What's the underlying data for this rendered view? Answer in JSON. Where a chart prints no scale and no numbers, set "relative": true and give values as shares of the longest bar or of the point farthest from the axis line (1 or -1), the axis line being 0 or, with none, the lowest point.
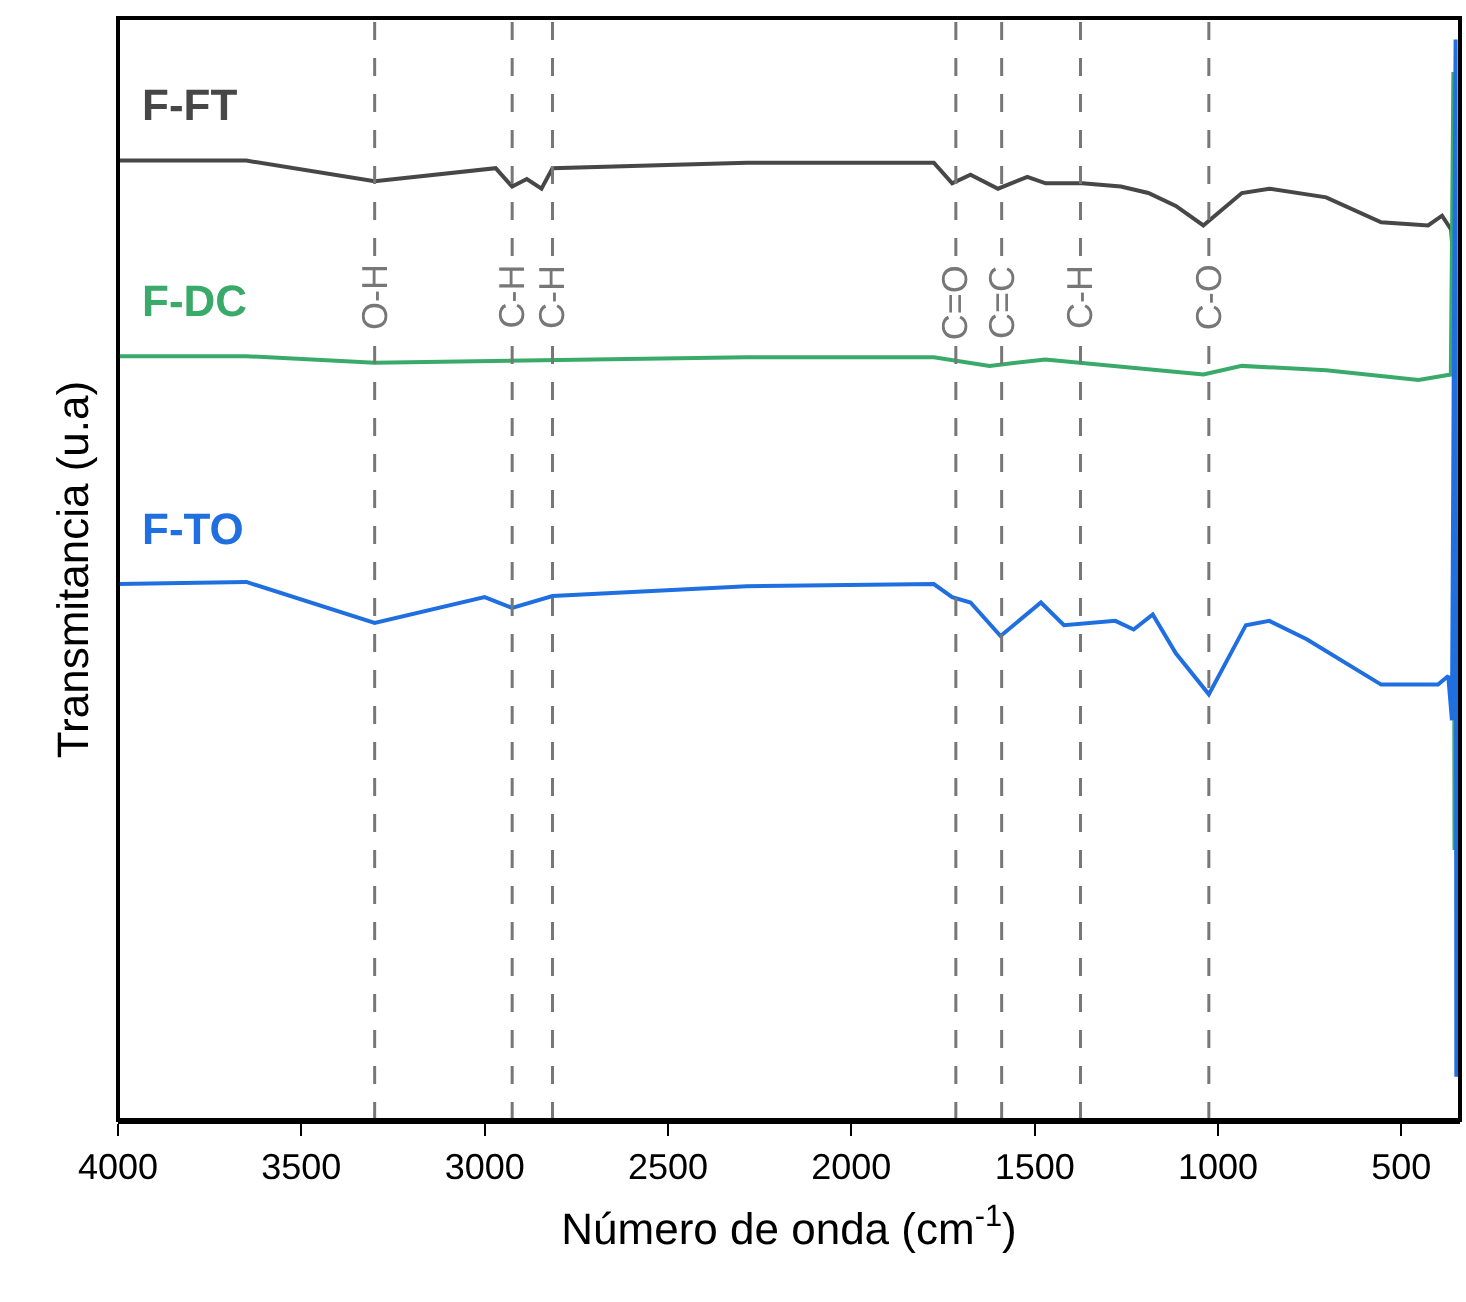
{
  "chart_data": {
    "type": "line",
    "relative": true,
    "xlabel": "Número de onda (cm$^{-1}$)",
    "ylabel": "Transmitancia (u.a)",
    "xlim": [
      4000,
      340
    ],
    "xticks": [
      4000,
      3500,
      3000,
      2500,
      2000,
      1500,
      1000,
      500
    ],
    "grid": false,
    "legend": false,
    "marker": "none",
    "line_style": "solid",
    "series": [
      {
        "name": "F-FT",
        "color": "#474747",
        "x": [
          4000,
          3650,
          3300,
          2970,
          2925,
          2885,
          2845,
          2815,
          2285,
          1775,
          1725,
          1675,
          1600,
          1520,
          1470,
          1370,
          1265,
          1190,
          1115,
          1040,
          935,
          860,
          705,
          555,
          427,
          389,
          364,
          357
        ],
        "values": [
          0.888,
          0.888,
          0.869,
          0.881,
          0.864,
          0.871,
          0.862,
          0.881,
          0.886,
          0.886,
          0.867,
          0.875,
          0.862,
          0.873,
          0.867,
          0.867,
          0.864,
          0.858,
          0.846,
          0.828,
          0.858,
          0.862,
          0.854,
          0.831,
          0.828,
          0.837,
          0.824,
          0.787
        ]
      },
      {
        "name": "F-DC",
        "color": "#3aaa6a",
        "x": [
          4000,
          3650,
          3300,
          2285,
          1775,
          1623,
          1471,
          1040,
          935,
          705,
          453,
          365,
          358,
          355
        ],
        "values": [
          0.707,
          0.707,
          0.701,
          0.706,
          0.706,
          0.698,
          0.704,
          0.69,
          0.698,
          0.694,
          0.685,
          0.69,
          0.97,
          0.25
        ]
      },
      {
        "name": "F-TO",
        "color": "#1f6fe0",
        "x": [
          4000,
          3650,
          3300,
          3000,
          2925,
          2815,
          2285,
          1775,
          1725,
          1675,
          1593,
          1483,
          1420,
          1280,
          1230,
          1178,
          1115,
          1025,
          924,
          860,
          758,
          555,
          400,
          372,
          362,
          352,
          350
        ],
        "values": [
          0.496,
          0.498,
          0.46,
          0.484,
          0.474,
          0.485,
          0.494,
          0.496,
          0.484,
          0.479,
          0.448,
          0.479,
          0.458,
          0.462,
          0.454,
          0.468,
          0.432,
          0.394,
          0.458,
          0.462,
          0.445,
          0.403,
          0.403,
          0.411,
          0.37,
          1,
          0.04
        ]
      }
    ],
    "ref_lines": [
      {
        "axis": "x",
        "value": 3300,
        "label": "O-H"
      },
      {
        "axis": "x",
        "value": 2925,
        "label": "C-H"
      },
      {
        "axis": "x",
        "value": 2815,
        "label": "C-H"
      },
      {
        "axis": "x",
        "value": 1715,
        "label": "C=O"
      },
      {
        "axis": "x",
        "value": 1590,
        "label": "C=C"
      },
      {
        "axis": "x",
        "value": 1375,
        "label": "C-H"
      },
      {
        "axis": "x",
        "value": 1025,
        "label": "C-O"
      }
    ]
  }
}
